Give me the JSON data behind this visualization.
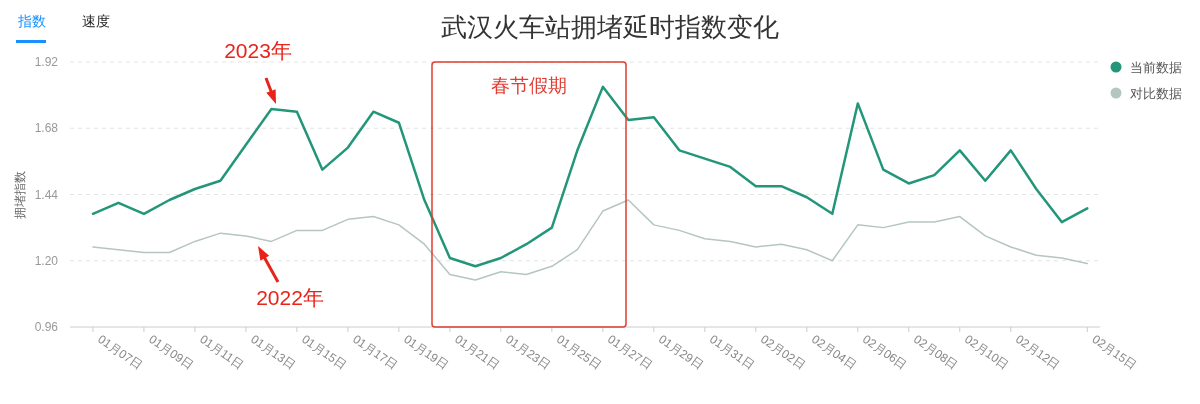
{
  "chart_data": {
    "type": "line",
    "title": "武汉火车站拥堵延时指数变化",
    "ylabel": "拥堵指数",
    "categories": [
      "01月07日",
      null,
      "01月09日",
      null,
      "01月11日",
      null,
      "01月13日",
      null,
      "01月15日",
      null,
      "01月17日",
      null,
      "01月19日",
      null,
      "01月21日",
      null,
      "01月23日",
      null,
      "01月25日",
      null,
      "01月27日",
      null,
      "01月29日",
      null,
      "01月31日",
      null,
      "02月02日",
      null,
      "02月04日",
      null,
      "02月06日",
      null,
      "02月08日",
      null,
      "02月10日",
      null,
      "02月12日",
      null,
      null,
      "02月15日"
    ],
    "series": [
      {
        "name": "当前数据",
        "color": "#23967a",
        "values": [
          1.37,
          1.41,
          1.37,
          1.42,
          1.46,
          1.49,
          1.62,
          1.75,
          1.74,
          1.53,
          1.61,
          1.74,
          1.7,
          1.42,
          1.21,
          1.18,
          1.21,
          1.26,
          1.32,
          1.6,
          1.83,
          1.71,
          1.72,
          1.6,
          1.57,
          1.54,
          1.47,
          1.47,
          1.43,
          1.37,
          1.77,
          1.53,
          1.48,
          1.51,
          1.6,
          1.49,
          1.6,
          1.46,
          1.34,
          1.39
        ]
      },
      {
        "name": "对比数据",
        "color": "#b5c6c1",
        "values": [
          1.25,
          1.24,
          1.23,
          1.23,
          1.27,
          1.3,
          1.29,
          1.27,
          1.31,
          1.31,
          1.35,
          1.36,
          1.33,
          1.26,
          1.15,
          1.13,
          1.16,
          1.15,
          1.18,
          1.24,
          1.38,
          1.42,
          1.33,
          1.31,
          1.28,
          1.27,
          1.25,
          1.26,
          1.24,
          1.2,
          1.33,
          1.32,
          1.34,
          1.34,
          1.36,
          1.29,
          1.25,
          1.22,
          1.21,
          1.19
        ]
      }
    ],
    "ylim": [
      0.96,
      1.92
    ],
    "yticks": [
      0.96,
      {
        "value": 1.2,
        "label": "1.20"
      },
      1.44,
      1.68,
      1.92
    ],
    "grid": "y",
    "legend": "top right",
    "marker": "none",
    "line_style": "solid",
    "annotations": [
      "2023年",
      "2022年",
      "春节假期",
      "指数",
      "速度"
    ]
  }
}
